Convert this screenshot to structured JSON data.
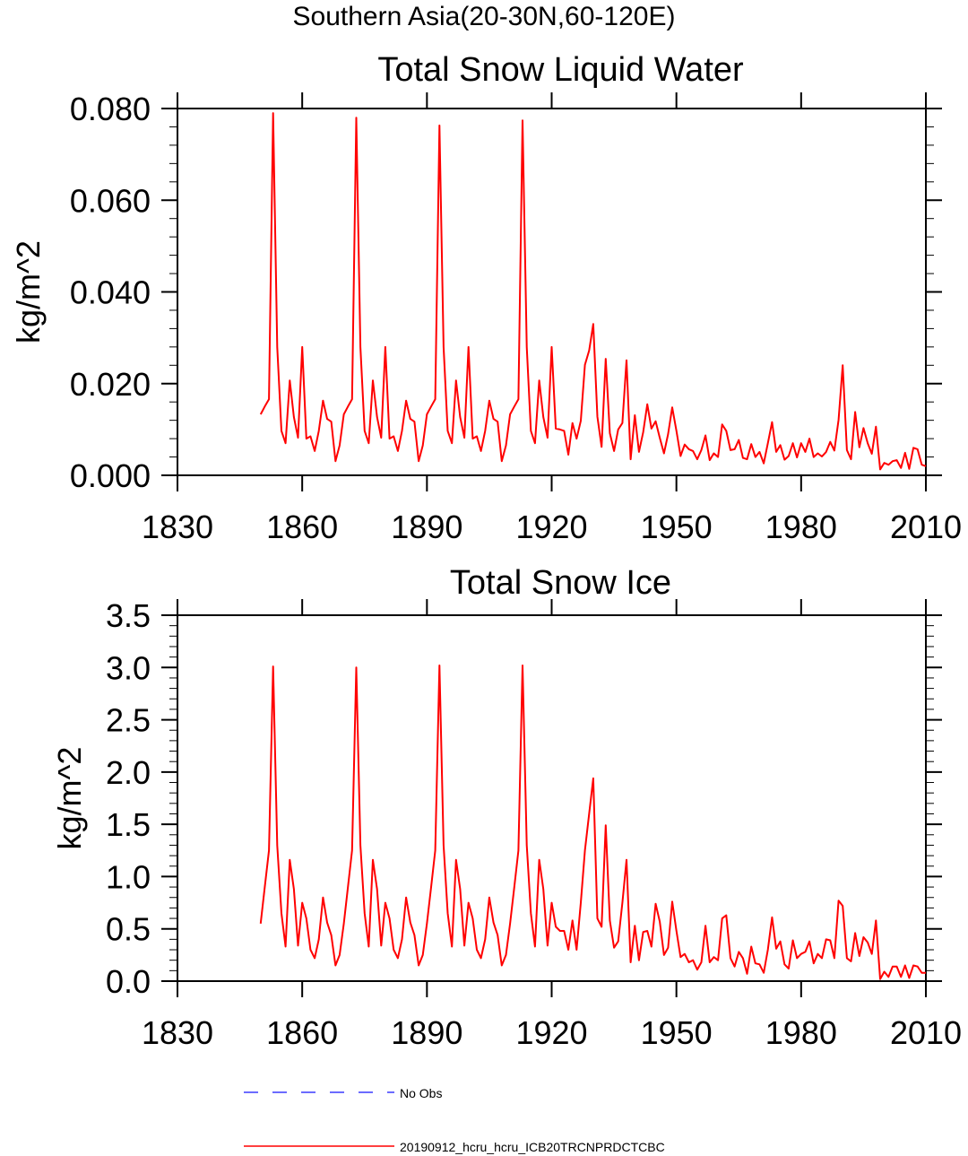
{
  "figure_title": "Southern Asia(20-30N,60-120E)",
  "legend": [
    {
      "label": "No Obs",
      "color": "#3b3bff",
      "style": "dashed"
    },
    {
      "label": "20190912_hcru_hcru_ICB20TRCNPRDCTCBC",
      "color": "#ff0000",
      "style": "solid"
    }
  ],
  "chart_data": [
    {
      "type": "line",
      "title": "Total Snow Liquid Water",
      "xlabel": "",
      "ylabel": "kg/m^2",
      "xlim": [
        1830,
        2010
      ],
      "ylim": [
        0,
        0.08
      ],
      "xticks": [
        1830,
        1860,
        1890,
        1920,
        1950,
        1980,
        2010
      ],
      "xtick_labels": [
        "1830",
        "1860",
        "1890",
        "1920",
        "1950",
        "1980",
        "2010"
      ],
      "yticks": [
        0,
        0.02,
        0.04,
        0.06,
        0.08
      ],
      "ytick_labels": [
        "0.000",
        "0.020",
        "0.040",
        "0.060",
        "0.080"
      ],
      "series": [
        {
          "name": "20190912_hcru_hcru_ICB20TRCNPRDCTCBC",
          "color": "#ff0000",
          "x": [
            1850,
            1851,
            1852,
            1853,
            1854,
            1855,
            1856,
            1857,
            1858,
            1859,
            1860,
            1861,
            1862,
            1863,
            1864,
            1865,
            1866,
            1867,
            1868,
            1869,
            1870,
            1871,
            1872,
            1873,
            1874,
            1875,
            1876,
            1877,
            1878,
            1879,
            1880,
            1881,
            1882,
            1883,
            1884,
            1885,
            1886,
            1887,
            1888,
            1889,
            1890,
            1891,
            1892,
            1893,
            1894,
            1895,
            1896,
            1897,
            1898,
            1899,
            1900,
            1901,
            1902,
            1903,
            1904,
            1905,
            1906,
            1907,
            1908,
            1909,
            1910,
            1911,
            1912,
            1913,
            1914,
            1915,
            1916,
            1917,
            1918,
            1919,
            1920,
            1921,
            1922,
            1923,
            1924,
            1925,
            1926,
            1927,
            1928,
            1929,
            1930,
            1931,
            1932,
            1933,
            1934,
            1935,
            1936,
            1937,
            1938,
            1939,
            1940,
            1941,
            1942,
            1943,
            1944,
            1945,
            1946,
            1947,
            1948,
            1949,
            1950,
            1951,
            1952,
            1953,
            1954,
            1955,
            1956,
            1957,
            1958,
            1959,
            1960,
            1961,
            1962,
            1963,
            1964,
            1965,
            1966,
            1967,
            1968,
            1969,
            1970,
            1971,
            1972,
            1973,
            1974,
            1975,
            1976,
            1977,
            1978,
            1979,
            1980,
            1981,
            1982,
            1983,
            1984,
            1985,
            1986,
            1987,
            1988,
            1989,
            1990,
            1991,
            1992,
            1993,
            1994,
            1995,
            1996,
            1997,
            1998,
            1999,
            2000,
            2001,
            2002,
            2003,
            2004,
            2005,
            2006,
            2007,
            2008,
            2009,
            2010
          ],
          "values": [
            0.0133,
            0.015,
            0.0166,
            0.079,
            0.028,
            0.0097,
            0.007,
            0.0207,
            0.0127,
            0.0082,
            0.028,
            0.008,
            0.0085,
            0.0053,
            0.0097,
            0.0163,
            0.0123,
            0.0117,
            0.0031,
            0.0065,
            0.0133,
            0.015,
            0.0166,
            0.078,
            0.028,
            0.0097,
            0.007,
            0.0207,
            0.0127,
            0.0082,
            0.028,
            0.008,
            0.0085,
            0.0053,
            0.0097,
            0.0163,
            0.0123,
            0.0117,
            0.0031,
            0.0065,
            0.0133,
            0.015,
            0.0166,
            0.0763,
            0.028,
            0.0097,
            0.007,
            0.0207,
            0.0127,
            0.0082,
            0.028,
            0.008,
            0.0085,
            0.0053,
            0.0097,
            0.0163,
            0.0123,
            0.0117,
            0.0031,
            0.0065,
            0.0133,
            0.015,
            0.0166,
            0.0774,
            0.028,
            0.0097,
            0.007,
            0.0207,
            0.0127,
            0.0082,
            0.028,
            0.0102,
            0.01,
            0.0097,
            0.0045,
            0.0114,
            0.008,
            0.0119,
            0.0241,
            0.0272,
            0.033,
            0.0128,
            0.0062,
            0.0254,
            0.0092,
            0.0053,
            0.01,
            0.0114,
            0.0251,
            0.0035,
            0.0131,
            0.0051,
            0.0094,
            0.0155,
            0.0102,
            0.0118,
            0.0082,
            0.0048,
            0.009,
            0.0148,
            0.0097,
            0.0042,
            0.0067,
            0.0057,
            0.0053,
            0.0035,
            0.0055,
            0.0087,
            0.0033,
            0.0048,
            0.004,
            0.0111,
            0.0097,
            0.0055,
            0.0057,
            0.0077,
            0.0038,
            0.0035,
            0.0068,
            0.004,
            0.0051,
            0.0026,
            0.007,
            0.0116,
            0.0051,
            0.0066,
            0.0034,
            0.0042,
            0.007,
            0.0039,
            0.007,
            0.0051,
            0.008,
            0.004,
            0.0048,
            0.0041,
            0.0051,
            0.0073,
            0.0054,
            0.0121,
            0.024,
            0.0055,
            0.0035,
            0.0138,
            0.0061,
            0.0103,
            0.007,
            0.0047,
            0.0106,
            0.0013,
            0.0027,
            0.0023,
            0.0031,
            0.0033,
            0.0016,
            0.0049,
            0.0014,
            0.006,
            0.0057,
            0.0023,
            0.002
          ]
        }
      ]
    },
    {
      "type": "line",
      "title": "Total Snow Ice",
      "xlabel": "",
      "ylabel": "kg/m^2",
      "xlim": [
        1830,
        2010
      ],
      "ylim": [
        0,
        3.5
      ],
      "xticks": [
        1830,
        1860,
        1890,
        1920,
        1950,
        1980,
        2010
      ],
      "xtick_labels": [
        "1830",
        "1860",
        "1890",
        "1920",
        "1950",
        "1980",
        "2010"
      ],
      "yticks": [
        0,
        0.5,
        1.0,
        1.5,
        2.0,
        2.5,
        3.0,
        3.5
      ],
      "ytick_labels": [
        "0.0",
        "0.5",
        "1.0",
        "1.5",
        "2.0",
        "2.5",
        "3.0",
        "3.5"
      ],
      "series": [
        {
          "name": "20190912_hcru_hcru_ICB20TRCNPRDCTCBC",
          "color": "#ff0000",
          "x": [
            1850,
            1851,
            1852,
            1853,
            1854,
            1855,
            1856,
            1857,
            1858,
            1859,
            1860,
            1861,
            1862,
            1863,
            1864,
            1865,
            1866,
            1867,
            1868,
            1869,
            1870,
            1871,
            1872,
            1873,
            1874,
            1875,
            1876,
            1877,
            1878,
            1879,
            1880,
            1881,
            1882,
            1883,
            1884,
            1885,
            1886,
            1887,
            1888,
            1889,
            1890,
            1891,
            1892,
            1893,
            1894,
            1895,
            1896,
            1897,
            1898,
            1899,
            1900,
            1901,
            1902,
            1903,
            1904,
            1905,
            1906,
            1907,
            1908,
            1909,
            1910,
            1911,
            1912,
            1913,
            1914,
            1915,
            1916,
            1917,
            1918,
            1919,
            1920,
            1921,
            1922,
            1923,
            1924,
            1925,
            1926,
            1927,
            1928,
            1929,
            1930,
            1931,
            1932,
            1933,
            1934,
            1935,
            1936,
            1937,
            1938,
            1939,
            1940,
            1941,
            1942,
            1943,
            1944,
            1945,
            1946,
            1947,
            1948,
            1949,
            1950,
            1951,
            1952,
            1953,
            1954,
            1955,
            1956,
            1957,
            1958,
            1959,
            1960,
            1961,
            1962,
            1963,
            1964,
            1965,
            1966,
            1967,
            1968,
            1969,
            1970,
            1971,
            1972,
            1973,
            1974,
            1975,
            1976,
            1977,
            1978,
            1979,
            1980,
            1981,
            1982,
            1983,
            1984,
            1985,
            1986,
            1987,
            1988,
            1989,
            1990,
            1991,
            1992,
            1993,
            1994,
            1995,
            1996,
            1997,
            1998,
            1999,
            2000,
            2001,
            2002,
            2003,
            2004,
            2005,
            2006,
            2007,
            2008,
            2009,
            2010
          ],
          "values": [
            0.55,
            0.9,
            1.25,
            3.01,
            1.3,
            0.65,
            0.33,
            1.16,
            0.88,
            0.34,
            0.75,
            0.6,
            0.3,
            0.22,
            0.4,
            0.8,
            0.56,
            0.44,
            0.15,
            0.25,
            0.55,
            0.9,
            1.25,
            3.0,
            1.3,
            0.65,
            0.33,
            1.16,
            0.88,
            0.34,
            0.75,
            0.6,
            0.3,
            0.22,
            0.4,
            0.8,
            0.56,
            0.44,
            0.15,
            0.25,
            0.55,
            0.9,
            1.25,
            3.02,
            1.3,
            0.65,
            0.33,
            1.16,
            0.88,
            0.34,
            0.75,
            0.6,
            0.3,
            0.22,
            0.4,
            0.8,
            0.56,
            0.44,
            0.15,
            0.25,
            0.55,
            0.9,
            1.25,
            3.02,
            1.3,
            0.65,
            0.33,
            1.16,
            0.88,
            0.34,
            0.75,
            0.52,
            0.48,
            0.48,
            0.3,
            0.58,
            0.3,
            0.75,
            1.25,
            1.6,
            1.94,
            0.6,
            0.52,
            1.49,
            0.58,
            0.32,
            0.38,
            0.75,
            1.16,
            0.18,
            0.53,
            0.2,
            0.47,
            0.48,
            0.33,
            0.74,
            0.57,
            0.25,
            0.32,
            0.76,
            0.48,
            0.23,
            0.26,
            0.18,
            0.2,
            0.11,
            0.18,
            0.53,
            0.18,
            0.23,
            0.2,
            0.6,
            0.63,
            0.22,
            0.14,
            0.28,
            0.22,
            0.07,
            0.33,
            0.17,
            0.16,
            0.08,
            0.3,
            0.61,
            0.31,
            0.38,
            0.16,
            0.12,
            0.39,
            0.22,
            0.26,
            0.28,
            0.38,
            0.17,
            0.26,
            0.22,
            0.4,
            0.39,
            0.22,
            0.77,
            0.72,
            0.22,
            0.19,
            0.46,
            0.24,
            0.42,
            0.37,
            0.26,
            0.58,
            0.02,
            0.09,
            0.04,
            0.14,
            0.14,
            0.04,
            0.15,
            0.03,
            0.15,
            0.14,
            0.08,
            0.08
          ]
        }
      ]
    }
  ]
}
